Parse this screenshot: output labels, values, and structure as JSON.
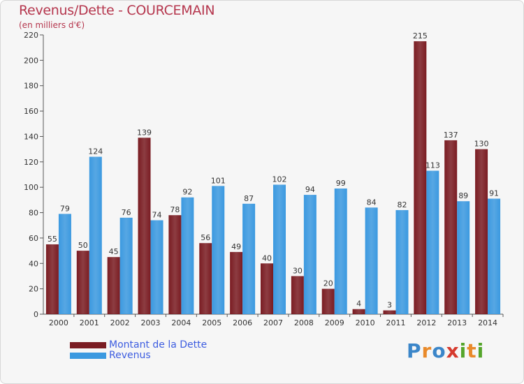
{
  "title": "Revenus/Dette - COURCEMAIN",
  "subtitle": "(en milliers d'€)",
  "logo": {
    "letters": [
      {
        "ch": "P",
        "color": "#3b86c9"
      },
      {
        "ch": "r",
        "color": "#e98a2a"
      },
      {
        "ch": "o",
        "color": "#3b86c9"
      },
      {
        "ch": "x",
        "color": "#d63a2e"
      },
      {
        "ch": "i",
        "color": "#55a52b"
      },
      {
        "ch": "t",
        "color": "#e98a2a"
      },
      {
        "ch": "i",
        "color": "#55a52b"
      }
    ]
  },
  "chart_data": {
    "type": "bar",
    "categories": [
      "2000",
      "2001",
      "2002",
      "2003",
      "2004",
      "2005",
      "2006",
      "2007",
      "2008",
      "2009",
      "2010",
      "2011",
      "2012",
      "2013",
      "2014"
    ],
    "series": [
      {
        "name": "Montant de la Dette",
        "color": "#7a1c22",
        "values": [
          55,
          50,
          45,
          139,
          78,
          56,
          49,
          40,
          30,
          20,
          4,
          3,
          215,
          137,
          130
        ]
      },
      {
        "name": "Revenus",
        "color": "#3b99e0",
        "values": [
          79,
          124,
          76,
          74,
          92,
          101,
          87,
          102,
          94,
          99,
          84,
          82,
          113,
          89,
          91
        ]
      }
    ],
    "ylim": [
      0,
      220
    ],
    "yticks": [
      0,
      20,
      40,
      60,
      80,
      100,
      120,
      140,
      160,
      180,
      200,
      220
    ],
    "grid": false,
    "legend": "bottom-left"
  }
}
